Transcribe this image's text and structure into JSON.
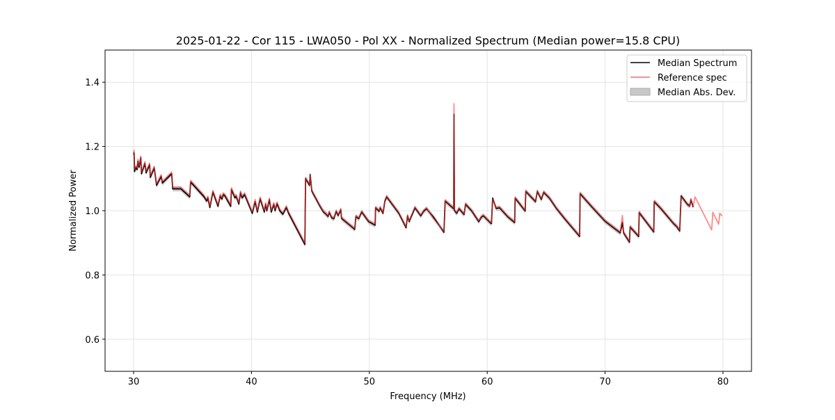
{
  "chart_data": {
    "type": "line",
    "title": "2025-01-22 - Cor 115 - LWA050 - Pol XX - Normalized Spectrum (Median power=15.8 CPU)",
    "xlabel": "Frequency (MHz)",
    "ylabel": "Normalized Power",
    "xlim": [
      27.58,
      82.42
    ],
    "ylim": [
      0.5,
      1.5
    ],
    "xticks": [
      30,
      40,
      50,
      60,
      70,
      80
    ],
    "yticks": [
      0.6,
      0.8,
      1.0,
      1.2,
      1.4
    ],
    "xtick_labels": [
      "30",
      "40",
      "50",
      "60",
      "70",
      "80"
    ],
    "ytick_labels": [
      "0.6",
      "0.8",
      "1.0",
      "1.2",
      "1.4"
    ],
    "grid": true,
    "legend_position": "top-right",
    "legend": [
      "Median Spectrum",
      "Reference spec",
      "Median Abs. Dev."
    ],
    "colors": {
      "median": "#000000",
      "reference": "#ff3b3b",
      "mad": "#bdbdbd"
    },
    "mad_halfwidth": 0.008,
    "series": [
      {
        "name": "Median Spectrum",
        "points": [
          [
            30.0,
            1.175
          ],
          [
            30.04,
            1.18
          ],
          [
            30.08,
            1.122
          ],
          [
            30.2,
            1.135
          ],
          [
            30.3,
            1.128
          ],
          [
            30.37,
            1.154
          ],
          [
            30.47,
            1.135
          ],
          [
            30.61,
            1.165
          ],
          [
            30.67,
            1.115
          ],
          [
            30.96,
            1.147
          ],
          [
            31.06,
            1.118
          ],
          [
            31.36,
            1.143
          ],
          [
            31.42,
            1.104
          ],
          [
            31.75,
            1.133
          ],
          [
            31.95,
            1.079
          ],
          [
            32.34,
            1.107
          ],
          [
            32.44,
            1.086
          ],
          [
            33.23,
            1.115
          ],
          [
            33.32,
            1.068
          ],
          [
            34.01,
            1.068
          ],
          [
            34.76,
            1.043
          ],
          [
            34.84,
            1.089
          ],
          [
            35.19,
            1.075
          ],
          [
            35.98,
            1.043
          ],
          [
            36.2,
            1.03
          ],
          [
            36.3,
            1.04
          ],
          [
            36.47,
            1.01
          ],
          [
            36.73,
            1.058
          ],
          [
            37.16,
            1.014
          ],
          [
            37.35,
            1.046
          ],
          [
            37.5,
            1.036
          ],
          [
            37.6,
            1.05
          ],
          [
            37.75,
            1.046
          ],
          [
            38.24,
            1.014
          ],
          [
            38.3,
            1.066
          ],
          [
            38.6,
            1.04
          ],
          [
            38.7,
            1.045
          ],
          [
            38.93,
            1.021
          ],
          [
            39.07,
            1.056
          ],
          [
            39.2,
            1.04
          ],
          [
            39.42,
            1.05
          ],
          [
            40.07,
            0.992
          ],
          [
            40.31,
            1.028
          ],
          [
            40.5,
            0.996
          ],
          [
            40.74,
            1.037
          ],
          [
            41.09,
            0.996
          ],
          [
            41.2,
            1.02
          ],
          [
            41.3,
            1.0
          ],
          [
            41.52,
            1.034
          ],
          [
            41.68,
            0.996
          ],
          [
            41.9,
            1.02
          ],
          [
            42.0,
            1.0
          ],
          [
            42.17,
            1.022
          ],
          [
            42.4,
            1.0
          ],
          [
            42.66,
            0.989
          ],
          [
            42.96,
            1.01
          ],
          [
            43.15,
            0.992
          ],
          [
            44.53,
            0.895
          ],
          [
            44.59,
            1.1
          ],
          [
            44.93,
            1.079
          ],
          [
            44.98,
            1.113
          ],
          [
            45.12,
            1.061
          ],
          [
            45.81,
            1.014
          ],
          [
            46.11,
            0.996
          ],
          [
            46.3,
            0.99
          ],
          [
            46.5,
            0.982
          ],
          [
            46.6,
            0.995
          ],
          [
            46.8,
            0.978
          ],
          [
            46.99,
            0.975
          ],
          [
            47.19,
            0.998
          ],
          [
            47.35,
            0.985
          ],
          [
            47.58,
            1.003
          ],
          [
            47.64,
            0.976
          ],
          [
            48.76,
            0.942
          ],
          [
            48.86,
            0.982
          ],
          [
            49.1,
            0.975
          ],
          [
            49.35,
            0.996
          ],
          [
            49.94,
            0.966
          ],
          [
            50.49,
            0.955
          ],
          [
            50.53,
            1.009
          ],
          [
            50.83,
            0.998
          ],
          [
            50.92,
            1.009
          ],
          [
            51.16,
            0.992
          ],
          [
            51.32,
            1.03
          ],
          [
            51.47,
            1.043
          ],
          [
            52.5,
            0.992
          ],
          [
            53.12,
            0.947
          ],
          [
            53.24,
            0.984
          ],
          [
            53.38,
            0.966
          ],
          [
            53.87,
            1.009
          ],
          [
            54.36,
            0.984
          ],
          [
            54.6,
            0.998
          ],
          [
            54.85,
            1.006
          ],
          [
            55.44,
            0.98
          ],
          [
            56.33,
            0.933
          ],
          [
            56.43,
            1.03
          ],
          [
            57.16,
            1.006
          ],
          [
            57.18,
            1.3
          ],
          [
            57.22,
            1.0
          ],
          [
            57.41,
            0.992
          ],
          [
            57.61,
            1.006
          ],
          [
            58.04,
            0.988
          ],
          [
            58.16,
            1.02
          ],
          [
            58.69,
            0.999
          ],
          [
            59.28,
            0.966
          ],
          [
            59.5,
            0.98
          ],
          [
            59.68,
            0.984
          ],
          [
            60.27,
            0.962
          ],
          [
            60.36,
            0.96
          ],
          [
            60.46,
            1.039
          ],
          [
            60.76,
            1.007
          ],
          [
            61.05,
            1.009
          ],
          [
            61.74,
            0.981
          ],
          [
            62.33,
            0.963
          ],
          [
            62.37,
            1.039
          ],
          [
            63.22,
            0.999
          ],
          [
            63.27,
            1.06
          ],
          [
            64.1,
            1.028
          ],
          [
            64.25,
            1.06
          ],
          [
            64.59,
            1.035
          ],
          [
            64.79,
            1.057
          ],
          [
            65.28,
            1.039
          ],
          [
            65.87,
            1.007
          ],
          [
            66.66,
            0.971
          ],
          [
            67.84,
            0.92
          ],
          [
            67.88,
            1.053
          ],
          [
            68.82,
            1.014
          ],
          [
            70.0,
            0.967
          ],
          [
            71.28,
            0.931
          ],
          [
            71.47,
            0.963
          ],
          [
            71.57,
            0.931
          ],
          [
            72.07,
            0.902
          ],
          [
            72.12,
            0.949
          ],
          [
            72.85,
            0.92
          ],
          [
            72.89,
            0.994
          ],
          [
            74.13,
            0.934
          ],
          [
            74.17,
            1.028
          ],
          [
            74.72,
            1.007
          ],
          [
            75.8,
            0.96
          ],
          [
            76.09,
            0.95
          ],
          [
            76.33,
            0.937
          ],
          [
            76.45,
            1.046
          ],
          [
            76.98,
            1.02
          ],
          [
            77.18,
            1.015
          ],
          [
            77.28,
            1.034
          ],
          [
            77.47,
            1.011
          ]
        ]
      },
      {
        "name": "Reference spec",
        "points": [
          [
            30.0,
            1.18
          ],
          [
            30.04,
            1.188
          ],
          [
            30.08,
            1.128
          ],
          [
            30.2,
            1.14
          ],
          [
            30.3,
            1.133
          ],
          [
            30.37,
            1.16
          ],
          [
            30.47,
            1.14
          ],
          [
            30.61,
            1.17
          ],
          [
            30.67,
            1.12
          ],
          [
            30.96,
            1.152
          ],
          [
            31.06,
            1.123
          ],
          [
            31.36,
            1.148
          ],
          [
            31.42,
            1.109
          ],
          [
            31.75,
            1.138
          ],
          [
            31.95,
            1.084
          ],
          [
            32.34,
            1.112
          ],
          [
            32.44,
            1.091
          ],
          [
            33.23,
            1.12
          ],
          [
            33.32,
            1.073
          ],
          [
            34.01,
            1.073
          ],
          [
            34.76,
            1.048
          ],
          [
            34.84,
            1.094
          ],
          [
            35.19,
            1.08
          ],
          [
            35.98,
            1.048
          ],
          [
            36.2,
            1.035
          ],
          [
            36.3,
            1.045
          ],
          [
            36.47,
            1.015
          ],
          [
            36.73,
            1.063
          ],
          [
            37.16,
            1.019
          ],
          [
            37.35,
            1.051
          ],
          [
            37.5,
            1.041
          ],
          [
            37.6,
            1.055
          ],
          [
            37.75,
            1.051
          ],
          [
            38.24,
            1.019
          ],
          [
            38.3,
            1.071
          ],
          [
            38.6,
            1.045
          ],
          [
            38.7,
            1.05
          ],
          [
            38.93,
            1.026
          ],
          [
            39.07,
            1.061
          ],
          [
            39.2,
            1.045
          ],
          [
            39.42,
            1.055
          ],
          [
            40.07,
            0.997
          ],
          [
            40.31,
            1.035
          ],
          [
            40.5,
            1.001
          ],
          [
            40.74,
            1.042
          ],
          [
            41.09,
            1.001
          ],
          [
            41.2,
            1.025
          ],
          [
            41.3,
            1.005
          ],
          [
            41.52,
            1.039
          ],
          [
            41.68,
            1.001
          ],
          [
            41.9,
            1.025
          ],
          [
            42.0,
            1.005
          ],
          [
            42.17,
            1.027
          ],
          [
            42.4,
            1.005
          ],
          [
            42.66,
            0.994
          ],
          [
            42.96,
            1.015
          ],
          [
            43.15,
            0.997
          ],
          [
            44.53,
            0.9
          ],
          [
            44.59,
            1.103
          ],
          [
            44.93,
            1.082
          ],
          [
            44.98,
            1.113
          ],
          [
            45.12,
            1.064
          ],
          [
            45.81,
            1.017
          ],
          [
            46.11,
            0.999
          ],
          [
            46.3,
            0.993
          ],
          [
            46.5,
            0.985
          ],
          [
            46.6,
            0.998
          ],
          [
            46.8,
            0.981
          ],
          [
            46.99,
            0.978
          ],
          [
            47.19,
            1.001
          ],
          [
            47.35,
            0.988
          ],
          [
            47.58,
            1.006
          ],
          [
            47.64,
            0.979
          ],
          [
            48.76,
            0.945
          ],
          [
            48.86,
            0.985
          ],
          [
            49.1,
            0.978
          ],
          [
            49.35,
            0.999
          ],
          [
            49.94,
            0.969
          ],
          [
            50.49,
            0.958
          ],
          [
            50.53,
            1.012
          ],
          [
            50.83,
            1.001
          ],
          [
            50.92,
            1.012
          ],
          [
            51.16,
            0.995
          ],
          [
            51.32,
            1.033
          ],
          [
            51.47,
            1.046
          ],
          [
            52.5,
            0.995
          ],
          [
            53.12,
            0.95
          ],
          [
            53.24,
            0.987
          ],
          [
            53.38,
            0.969
          ],
          [
            53.87,
            1.012
          ],
          [
            54.36,
            0.987
          ],
          [
            54.6,
            1.001
          ],
          [
            54.85,
            1.009
          ],
          [
            55.44,
            0.975
          ],
          [
            56.33,
            0.936
          ],
          [
            56.43,
            1.033
          ],
          [
            57.16,
            1.009
          ],
          [
            57.18,
            1.333
          ],
          [
            57.22,
            1.003
          ],
          [
            57.41,
            0.995
          ],
          [
            57.61,
            1.009
          ],
          [
            58.04,
            0.991
          ],
          [
            58.16,
            1.023
          ],
          [
            58.69,
            1.002
          ],
          [
            59.28,
            0.969
          ],
          [
            59.5,
            0.983
          ],
          [
            59.68,
            0.987
          ],
          [
            60.27,
            0.965
          ],
          [
            60.36,
            0.963
          ],
          [
            60.46,
            1.036
          ],
          [
            60.76,
            1.01
          ],
          [
            61.05,
            1.012
          ],
          [
            61.74,
            0.984
          ],
          [
            62.33,
            0.966
          ],
          [
            62.37,
            1.042
          ],
          [
            63.22,
            1.002
          ],
          [
            63.27,
            1.063
          ],
          [
            64.1,
            1.031
          ],
          [
            64.25,
            1.063
          ],
          [
            64.59,
            1.038
          ],
          [
            64.79,
            1.06
          ],
          [
            65.28,
            1.042
          ],
          [
            65.87,
            1.01
          ],
          [
            66.66,
            0.974
          ],
          [
            67.84,
            0.923
          ],
          [
            67.88,
            1.056
          ],
          [
            68.82,
            1.017
          ],
          [
            70.0,
            0.97
          ],
          [
            71.28,
            0.934
          ],
          [
            71.47,
            0.985
          ],
          [
            71.57,
            0.934
          ],
          [
            72.07,
            0.905
          ],
          [
            72.12,
            0.952
          ],
          [
            72.85,
            0.923
          ],
          [
            72.89,
            0.997
          ],
          [
            74.13,
            0.937
          ],
          [
            74.17,
            1.031
          ],
          [
            74.72,
            1.01
          ],
          [
            75.8,
            0.963
          ],
          [
            76.09,
            0.953
          ],
          [
            76.33,
            0.94
          ],
          [
            76.45,
            1.043
          ],
          [
            76.98,
            1.017
          ],
          [
            77.18,
            1.012
          ],
          [
            77.28,
            1.037
          ],
          [
            77.47,
            1.014
          ],
          [
            77.63,
            1.043
          ],
          [
            79.04,
            0.94
          ],
          [
            79.14,
            0.995
          ],
          [
            79.63,
            0.958
          ],
          [
            79.73,
            0.992
          ],
          [
            79.93,
            0.983
          ]
        ]
      }
    ]
  }
}
